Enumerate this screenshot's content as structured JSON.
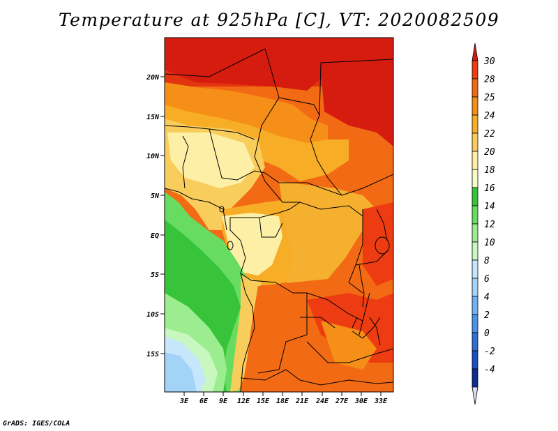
{
  "title": "Temperature at 925hPa [C], VT: 2020082509",
  "credit": "GrADS: IGES/COLA",
  "lat_ticks": [
    "20N",
    "15N",
    "10N",
    "5N",
    "EQ",
    "5S",
    "10S",
    "15S"
  ],
  "lon_ticks": [
    "3E",
    "6E",
    "9E",
    "12E",
    "15E",
    "18E",
    "21E",
    "24E",
    "27E",
    "30E",
    "33E"
  ],
  "colorbar": {
    "labels": [
      "30",
      "28",
      "25",
      "24",
      "22",
      "20",
      "18",
      "16",
      "14",
      "12",
      "10",
      "8",
      "6",
      "4",
      "2",
      "0",
      "-2",
      "-4"
    ],
    "colors": [
      "#d61c0f",
      "#ee3c12",
      "#f36a14",
      "#f58f17",
      "#f7ad26",
      "#f9cd5c",
      "#fdf0a6",
      "#f7fbc8",
      "#37c43a",
      "#67dc60",
      "#9cec90",
      "#c8f7c0",
      "#c6e6fb",
      "#a3d4f8",
      "#72b2f2",
      "#4a93e7",
      "#2e6fd8",
      "#1a4fc0",
      "#0e2c94",
      "#dcdcf6"
    ]
  },
  "colors": {
    "hot_north": "#d61c0f",
    "warm_east": "#f36a14",
    "mild_center": "#f9cd5c",
    "cool_coast": "#67dc60",
    "coldest_south": "#a3d4f8"
  }
}
